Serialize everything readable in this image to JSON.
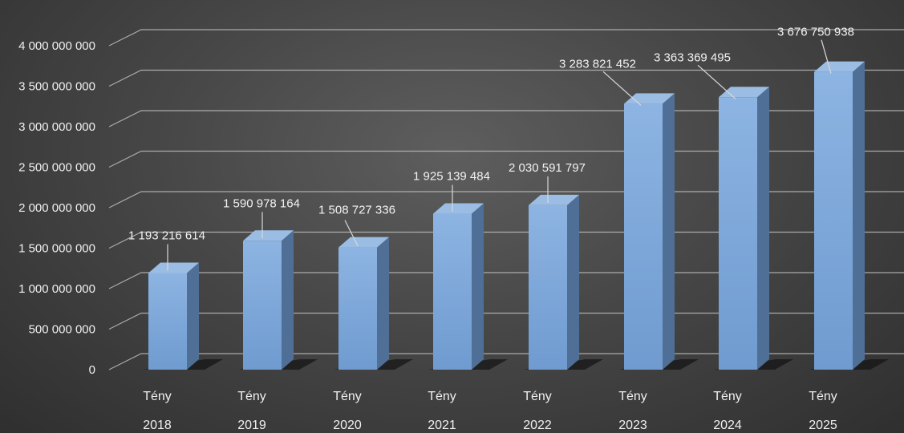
{
  "chart_data": {
    "type": "bar",
    "style": "3d-column",
    "title": "",
    "xlabel": "",
    "ylabel": "",
    "ylim": [
      0,
      4000000000
    ],
    "yticks": [
      0,
      500000000,
      1000000000,
      1500000000,
      2000000000,
      2500000000,
      3000000000,
      3500000000,
      4000000000
    ],
    "ytick_labels": [
      "0",
      "500 000 000",
      "1 000 000 000",
      "1 500 000 000",
      "2 000 000 000",
      "2 500 000 000",
      "3 000 000 000",
      "3 500 000 000",
      "4 000 000 000"
    ],
    "grid": true,
    "legend": "none",
    "categories": [
      {
        "line1": "Tény",
        "line2": "2018"
      },
      {
        "line1": "Tény",
        "line2": "2019"
      },
      {
        "line1": "Tény",
        "line2": "2020"
      },
      {
        "line1": "Tény",
        "line2": "2021"
      },
      {
        "line1": "Tény",
        "line2": "2022"
      },
      {
        "line1": "Tény",
        "line2": "2023"
      },
      {
        "line1": "Tény",
        "line2": "2024"
      },
      {
        "line1": "Tény",
        "line2": "2025"
      }
    ],
    "values": [
      1193216614,
      1590978164,
      1508727336,
      1925139484,
      2030591797,
      3283821452,
      3363369495,
      3676750938
    ],
    "value_labels": [
      "1 193 216 614",
      "1 590 978 164",
      "1 508 727 336",
      "1 925 139 484",
      "2 030 591 797",
      "3 283 821 452",
      "3 363 369 495",
      "3 676 750 938"
    ],
    "colors": {
      "bar_front": "#7ea8d9",
      "bar_side": "#4f6f96",
      "bar_top": "#9cbde3",
      "gridline": "#bdbdbd",
      "text": "#f0f0f0"
    }
  }
}
